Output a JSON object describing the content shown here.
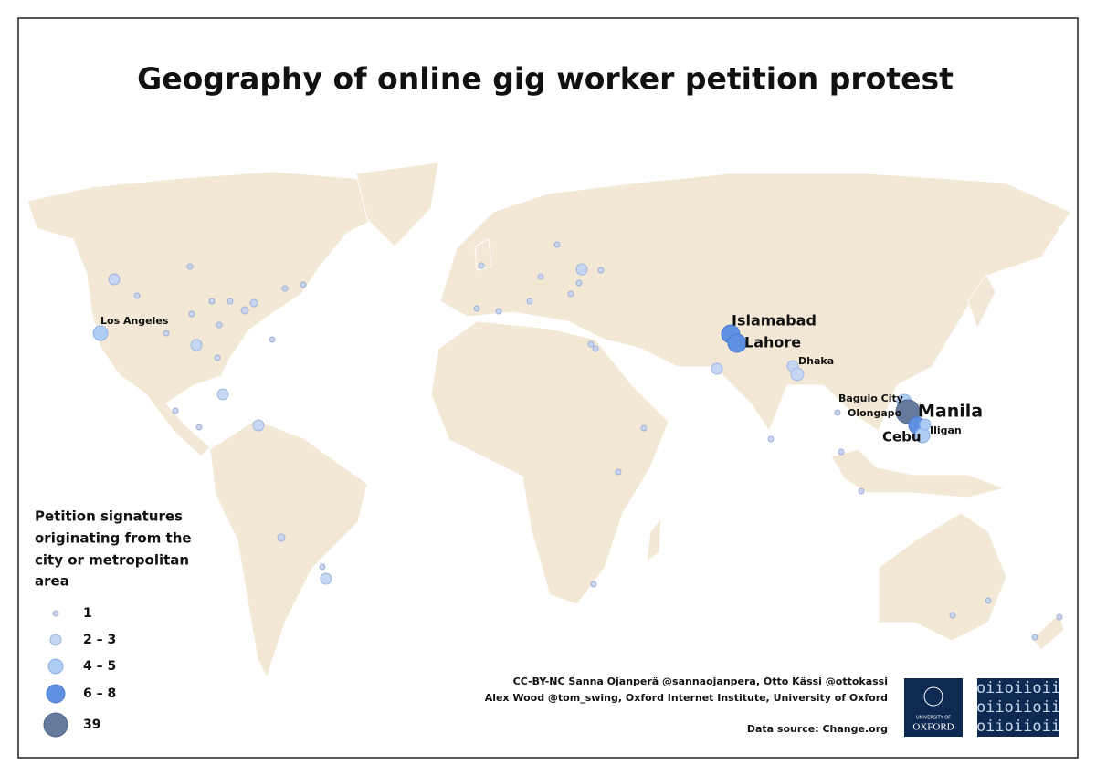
{
  "title": "Geography of online gig worker petition protest",
  "legend": {
    "title_lines": [
      "Petition signatures",
      "originating from the",
      "city or metropolitan",
      "area"
    ],
    "items": [
      "1",
      "2 – 3",
      "4 – 5",
      "6 – 8",
      "39"
    ]
  },
  "city_labels": [
    "Los Angeles",
    "Islamabad",
    "Lahore",
    "Dhaka",
    "Baguio City",
    "Olongapo",
    "Manila",
    "Cebu",
    "Iligan"
  ],
  "credits": [
    "CC-BY-NC Sanna Ojanperä @sannaojanpera, Otto Kässi @ottokassi",
    "Alex Wood @tom_swing, Oxford Internet Institute, University of Oxford"
  ],
  "data_source": "Data source: Change.org",
  "logos": {
    "oxford": [
      "UNIVERSITY OF",
      "OXFORD"
    ],
    "oii": [
      "oiioiioii",
      "oiioiioii",
      "oiioiioii"
    ]
  }
}
